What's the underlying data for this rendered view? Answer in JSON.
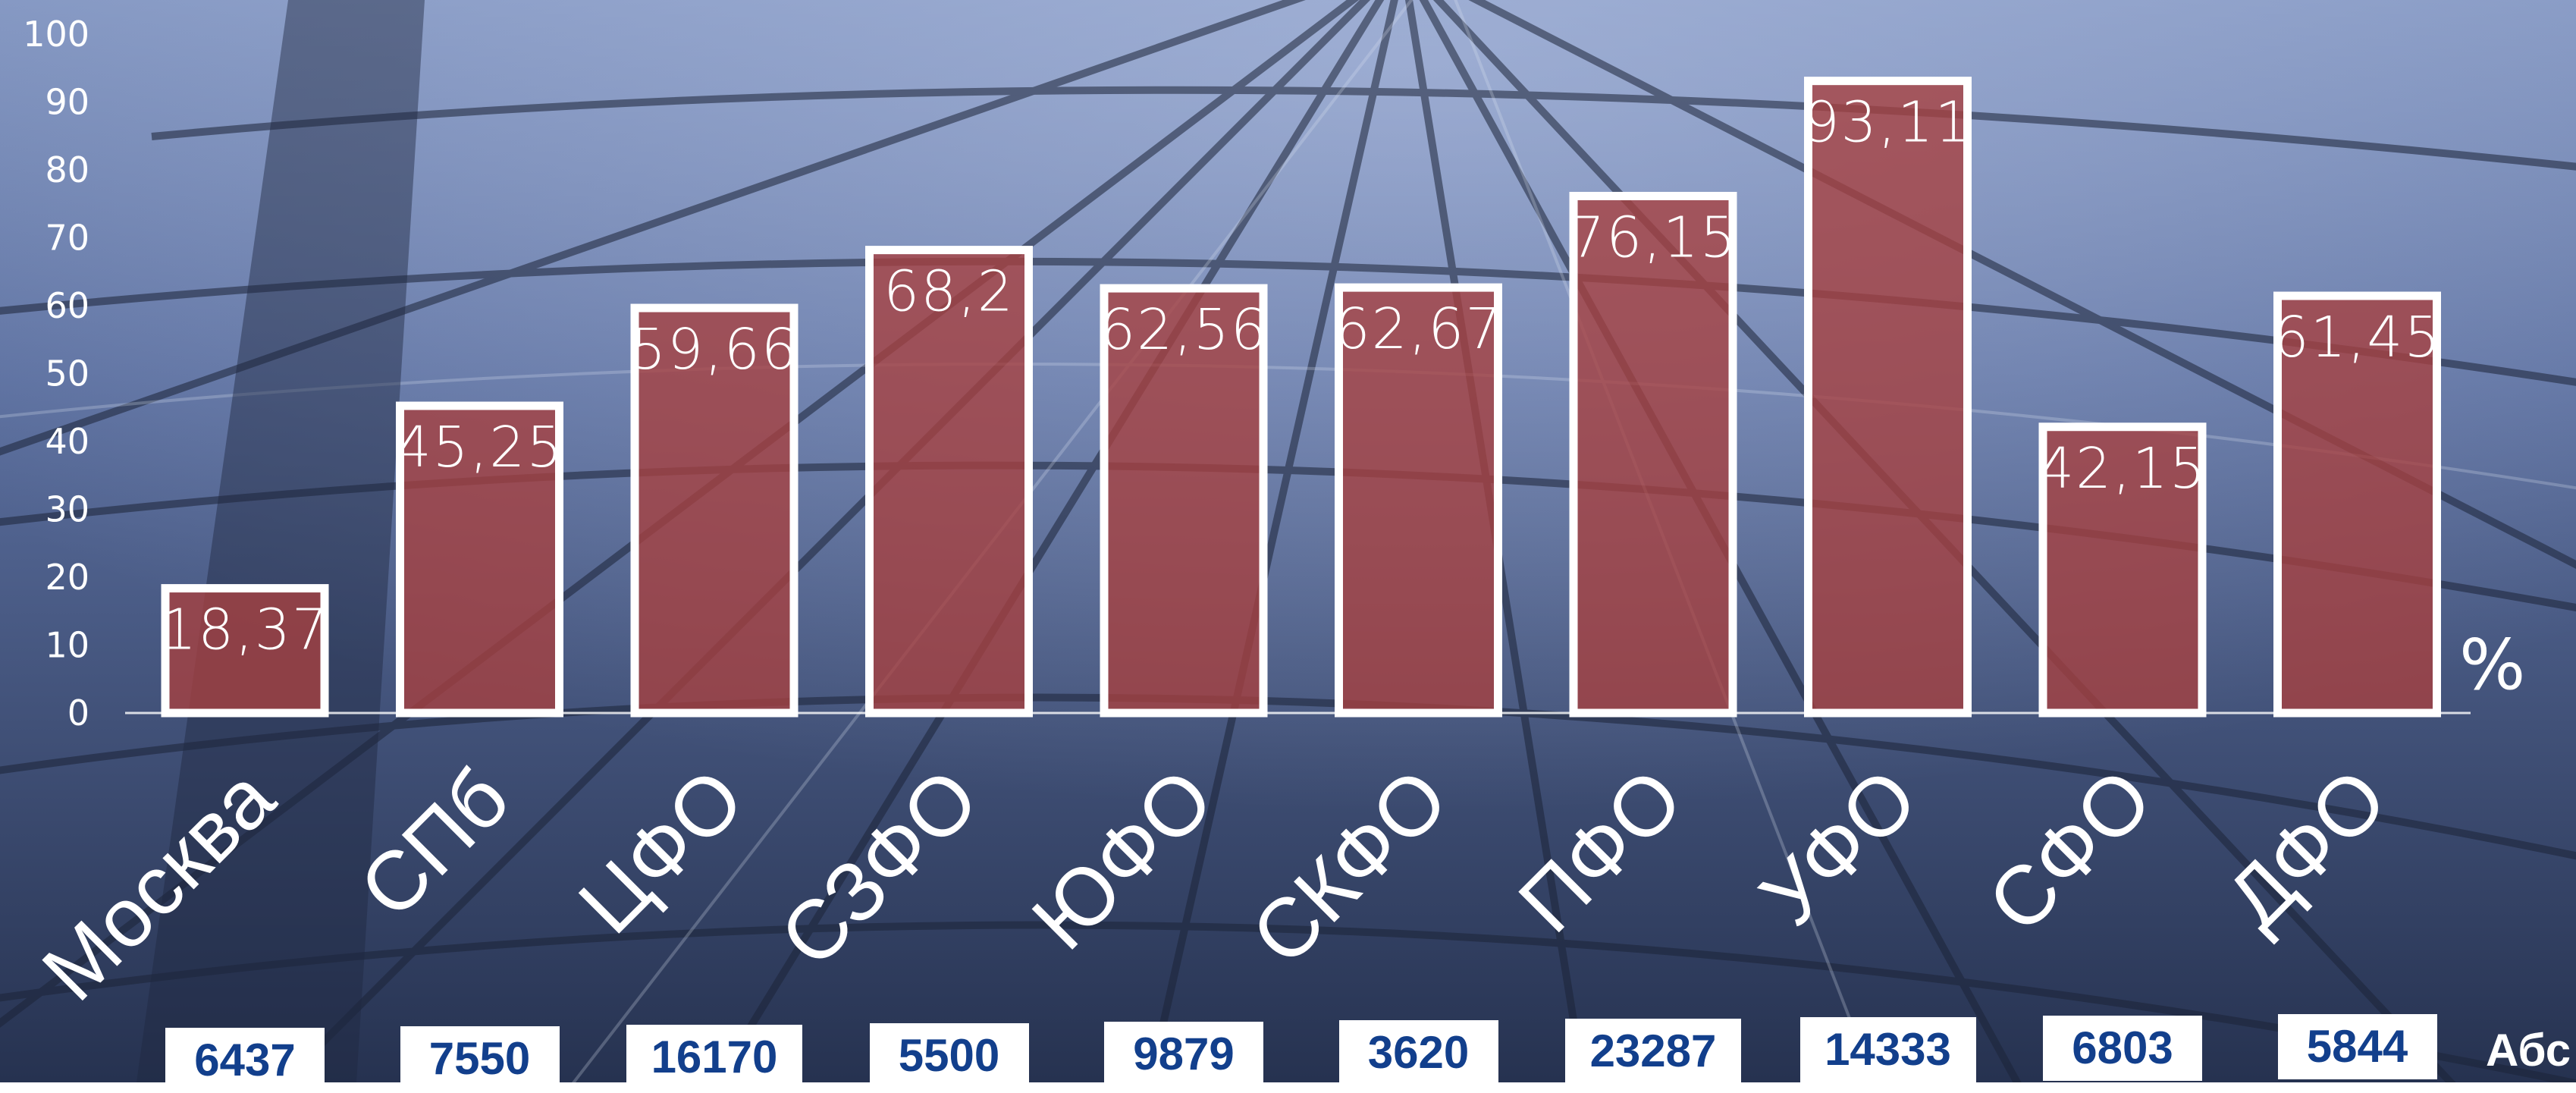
{
  "chart_data": {
    "type": "bar",
    "categories": [
      "Москва",
      "СПб",
      "ЦФО",
      "СЗФО",
      "ЮФО",
      "СКФО",
      "ПФО",
      "УФО",
      "СФО",
      "ДФО"
    ],
    "values": [
      18.37,
      45.25,
      59.66,
      68.2,
      62.56,
      62.67,
      76.15,
      93.11,
      42.15,
      61.45
    ],
    "value_labels": [
      "18,37",
      "45,25",
      "59,66",
      "68,2",
      "62,56",
      "62,67",
      "76,15",
      "93,11",
      "42,15",
      "61,45"
    ],
    "y_ticks": [
      "0",
      "10",
      "20",
      "30",
      "40",
      "50",
      "60",
      "70",
      "80",
      "90",
      "100"
    ],
    "ylim": [
      0,
      100
    ],
    "unit_label": "%",
    "absolute_title": "Абс",
    "absolute_values": [
      "6437",
      "7550",
      "16170",
      "5500",
      "9879",
      "3620",
      "23287",
      "14333",
      "6803",
      "5844"
    ],
    "grid": false,
    "colors": {
      "bar_fill": "#a8403f",
      "bar_stroke": "#ffffff",
      "abs_text": "#123f8c",
      "background": "#3c4f78"
    }
  }
}
